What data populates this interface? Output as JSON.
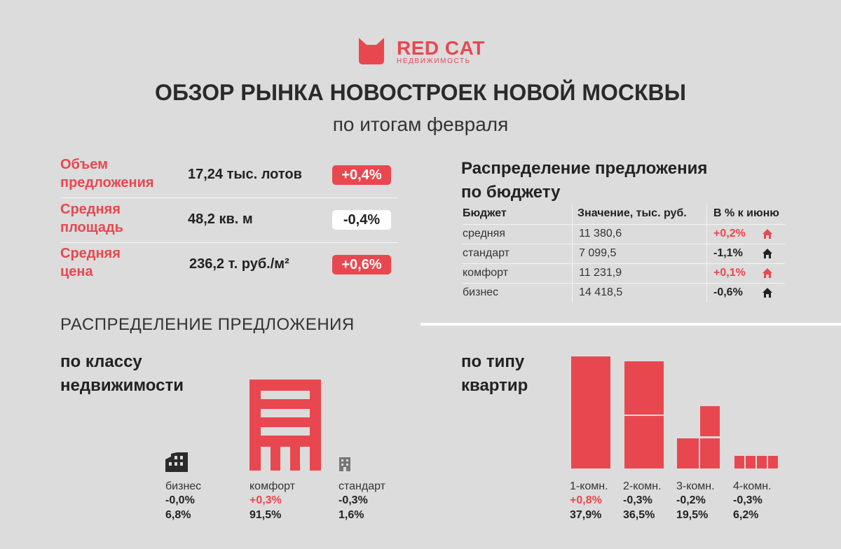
{
  "brand": {
    "name": "RED CAT",
    "sub": "НЕДВИЖИМОСТЬ",
    "color": "#e9474f",
    "icon": "cat-ears-logo-icon"
  },
  "header": {
    "title": "ОБЗОР РЫНКА НОВОСТРОЕК НОВОЙ МОСКВЫ",
    "subtitle": "по итогам февраля"
  },
  "kpis": [
    {
      "label_line1": "Объем",
      "label_line2": "предложения",
      "value": "17,24 тыс. лотов",
      "change": "+0,4%",
      "badge": "red"
    },
    {
      "label_line1": "Средняя",
      "label_line2": "площадь",
      "value": "48,2 кв. м",
      "change": "-0,4%",
      "badge": "white"
    },
    {
      "label_line1": "Средняя",
      "label_line2": "цена",
      "value": "236,2 т. руб./м²",
      "change": "+0,6%",
      "badge": "red"
    }
  ],
  "budget": {
    "title_line1": "Распределение предложения",
    "title_line2": "по бюджету",
    "columns": [
      "Бюджет",
      "Значение, тыс. руб.",
      "В % к июню"
    ],
    "rows": [
      {
        "name": "средняя",
        "value": "11 380,6",
        "change": "+0,2%",
        "trend": "up",
        "icon": "house-red-icon"
      },
      {
        "name": "стандарт",
        "value": "7 099,5",
        "change": "-1,1%",
        "trend": "down",
        "icon": "house-black-icon"
      },
      {
        "name": "комфорт",
        "value": "11 231,9",
        "change": "+0,1%",
        "trend": "up",
        "icon": "house-red-icon"
      },
      {
        "name": "бизнес",
        "value": "14 418,5",
        "change": "-0,6%",
        "trend": "down",
        "icon": "house-black-icon"
      }
    ]
  },
  "distribution": {
    "heading": "РАСПРЕДЕЛЕНИЕ ПРЕДЛОЖЕНИЯ",
    "by_class": {
      "title_line1": "по классу",
      "title_line2": "недвижимости",
      "items": [
        {
          "name": "бизнес",
          "change": "-0,0%",
          "share": "6,8%",
          "icon": "factory-building-icon"
        },
        {
          "name": "комфорт",
          "change": "+0,3%",
          "share": "91,5%",
          "icon": "apartment-building-icon"
        },
        {
          "name": "стандарт",
          "change": "-0,3%",
          "share": "1,6%",
          "icon": "small-building-icon"
        }
      ]
    },
    "by_type": {
      "title_line1": "по типу",
      "title_line2": "квартир",
      "items": [
        {
          "name": "1-комн.",
          "change": "+0,8%",
          "share": "37,9%",
          "share_value": 37.9
        },
        {
          "name": "2-комн.",
          "change": "-0,3%",
          "share": "36,5%",
          "share_value": 36.5
        },
        {
          "name": "3-комн.",
          "change": "-0,2%",
          "share": "19,5%",
          "share_value": 19.5
        },
        {
          "name": "4-комн.",
          "change": "-0,3%",
          "share": "6,2%",
          "share_value": 6.2
        }
      ]
    }
  }
}
